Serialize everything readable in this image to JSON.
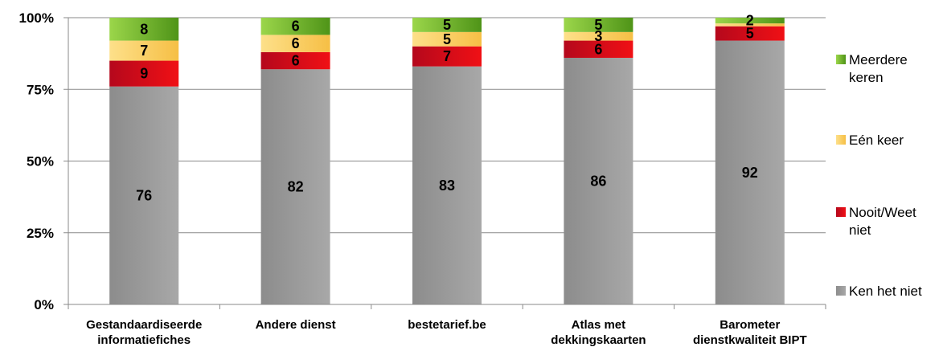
{
  "chart_data": {
    "type": "bar",
    "stacked": true,
    "percent": true,
    "categories": [
      [
        "Gestandaardiseerde",
        "informatiefiches"
      ],
      [
        "Andere dienst"
      ],
      [
        "bestetarief.be"
      ],
      [
        "Atlas met",
        "dekkingskaarten"
      ],
      [
        "Barometer",
        "dienstkwaliteit BIPT"
      ]
    ],
    "series": [
      {
        "name": "Ken het niet",
        "legend_lines": [
          "Ken het niet"
        ],
        "color": "#9a9a9a",
        "values": [
          76,
          82,
          83,
          86,
          92
        ]
      },
      {
        "name": "Nooit/Weet niet",
        "legend_lines": [
          "Nooit/Weet",
          "niet"
        ],
        "color": "#d90d1a",
        "values": [
          9,
          6,
          7,
          6,
          5
        ]
      },
      {
        "name": "Eén keer",
        "legend_lines": [
          "Eén keer"
        ],
        "color": "#f9c85e",
        "values": [
          7,
          6,
          5,
          3,
          1
        ]
      },
      {
        "name": "Meerdere keren",
        "legend_lines": [
          "Meerdere",
          "keren"
        ],
        "color": "#6aab26",
        "values": [
          8,
          6,
          5,
          5,
          2
        ]
      }
    ],
    "data_labels": [
      [
        "76",
        "9",
        "7",
        "8"
      ],
      [
        "82",
        "6",
        "6",
        "6"
      ],
      [
        "83",
        "7",
        "5",
        "5"
      ],
      [
        "86",
        "6",
        "3",
        "5"
      ],
      [
        "92",
        "5",
        "",
        "2"
      ]
    ],
    "y_ticks": [
      "0%",
      "25%",
      "50%",
      "75%",
      "100%"
    ],
    "ylim": [
      0,
      100
    ],
    "grid": true,
    "legend_position": "right"
  }
}
